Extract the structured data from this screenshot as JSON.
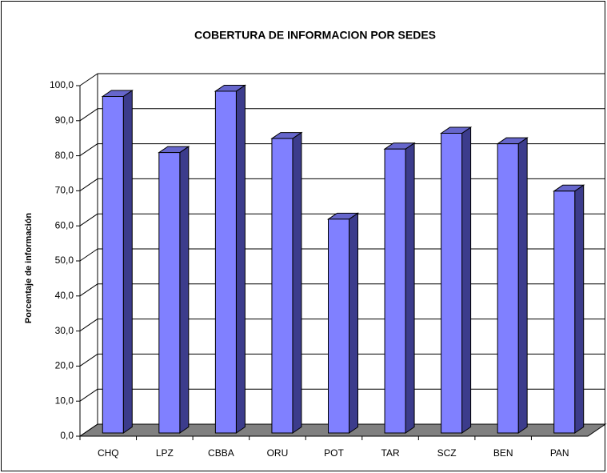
{
  "chart_data": {
    "type": "bar3d",
    "title": "COBERTURA DE INFORMACION POR SEDES",
    "y_label": "Porcentaje de información",
    "categories": [
      "CHQ",
      "LPZ",
      "CBBA",
      "ORU",
      "POT",
      "TAR",
      "SCZ",
      "BEN",
      "PAN"
    ],
    "values": [
      96,
      80,
      97.5,
      84,
      61,
      81,
      85.5,
      82.5,
      69
    ],
    "color": "#8080ff",
    "ylim": [
      0,
      100
    ],
    "yticks": [
      {
        "value": 0,
        "label": "0,0"
      },
      {
        "value": 10,
        "label": "10,0"
      },
      {
        "value": 20,
        "label": "20,0"
      },
      {
        "value": 30,
        "label": "30,0"
      },
      {
        "value": 40,
        "label": "40,0"
      },
      {
        "value": 50,
        "label": "50,0"
      },
      {
        "value": 60,
        "label": "60,0"
      },
      {
        "value": 70,
        "label": "70,0"
      },
      {
        "value": 80,
        "label": "80,0"
      },
      {
        "value": 90,
        "label": "90,0"
      },
      {
        "value": 100,
        "label": "100,0"
      }
    ],
    "grid": true
  }
}
